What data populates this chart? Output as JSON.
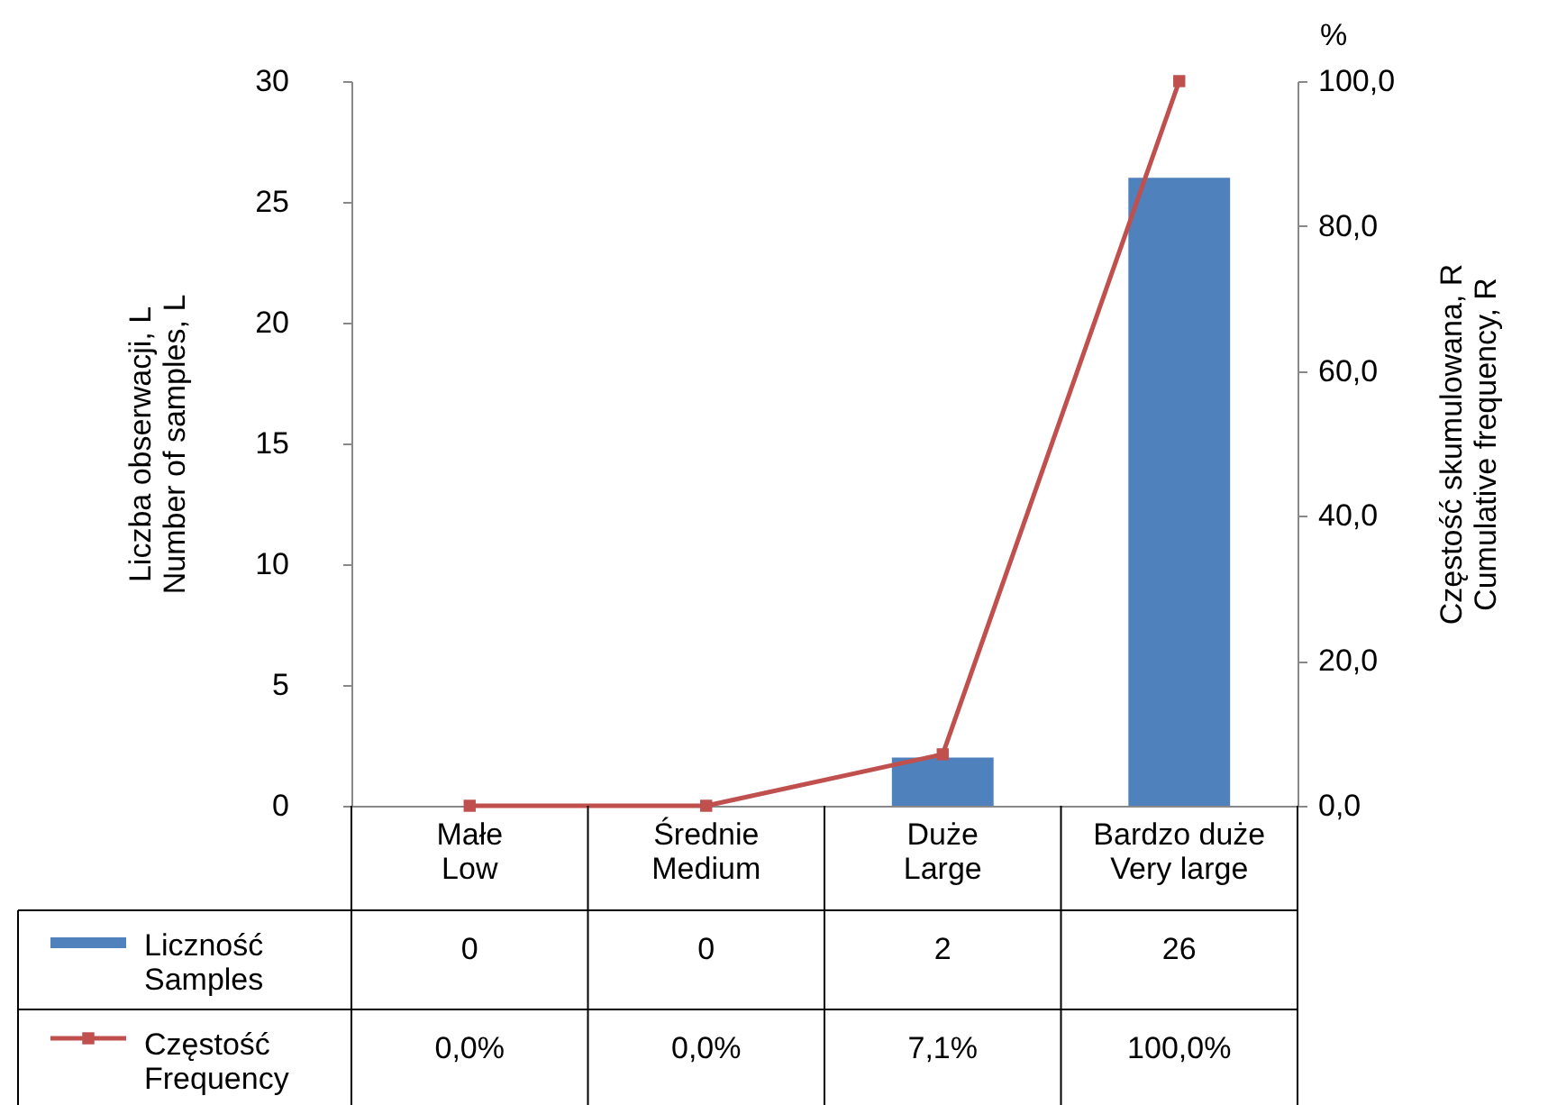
{
  "chart_data": {
    "type": "bar",
    "categories": [
      "Małe\nLow",
      "Średnie\nMedium",
      "Duże\nLarge",
      "Bardzo duże\nVery large"
    ],
    "series": [
      {
        "name": "Liczność\nSamples",
        "color": "#4f81bd",
        "values": [
          0,
          0,
          2,
          26
        ],
        "value_labels": [
          "0",
          "0",
          "2",
          "26"
        ]
      },
      {
        "name": "Częstość\nFrequency",
        "type": "line",
        "axis": "y2",
        "color": "#c0504d",
        "marker": "square",
        "values": [
          0,
          0,
          7.1,
          100
        ],
        "value_labels": [
          "0,0%",
          "0,0%",
          "7,1%",
          "100,0%"
        ]
      }
    ],
    "ylabel": "Liczba obserwacji, L\nNumber of samples, L",
    "y2label": "Częstość skumulowana, R\nCumulative  frequency, R",
    "ylim": [
      0,
      30
    ],
    "yticks": [
      0,
      5,
      10,
      15,
      20,
      25,
      30
    ],
    "y2lim": [
      0,
      100
    ],
    "y2ticks": [
      {
        "value": 0,
        "label": "0,0"
      },
      {
        "value": 20,
        "label": "20,0"
      },
      {
        "value": 40,
        "label": "40,0"
      },
      {
        "value": 60,
        "label": "60,0"
      },
      {
        "value": 80,
        "label": "80,0"
      },
      {
        "value": 100,
        "label": "100,0"
      }
    ],
    "annotations": [
      "%"
    ],
    "legend": "bottom",
    "grid": false
  }
}
